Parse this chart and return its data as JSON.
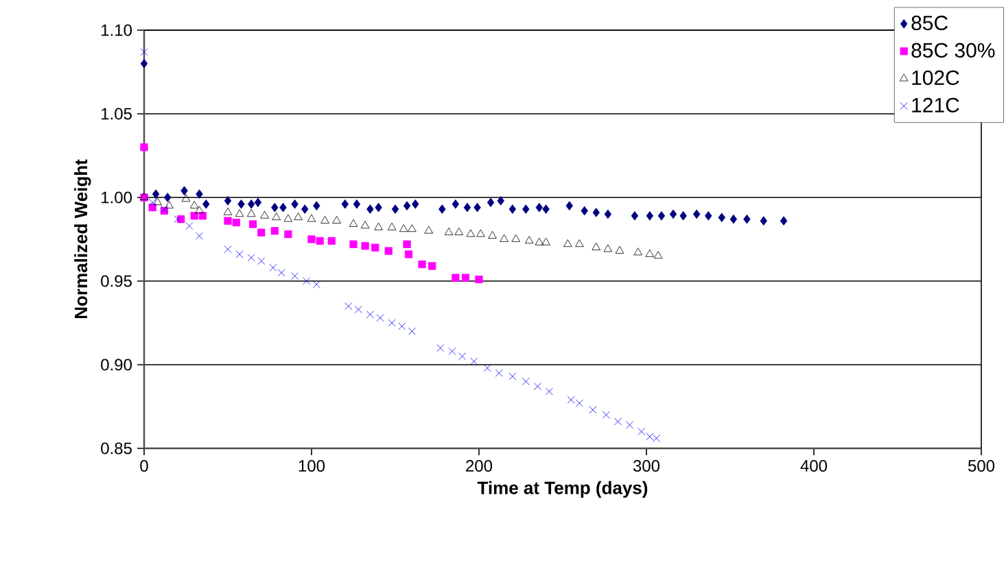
{
  "chart_data": {
    "type": "scatter",
    "xlabel": "Time at Temp (days)",
    "ylabel": "Normalized Weight",
    "xlim": [
      0,
      500
    ],
    "xticks": [
      0,
      100,
      200,
      300,
      400,
      500
    ],
    "ylim": [
      0.85,
      1.1
    ],
    "yticks": [
      {
        "value": 0.85,
        "label": "0.85"
      },
      {
        "value": 0.9,
        "label": "0.90"
      },
      {
        "value": 0.95,
        "label": "0.95"
      },
      {
        "value": 1.0,
        "label": "1.00"
      },
      {
        "value": 1.05,
        "label": "1.05"
      },
      {
        "value": 1.1,
        "label": "1.10"
      }
    ],
    "grid": "y",
    "legend": "top right",
    "series": [
      {
        "name": "85C",
        "color": "#000080",
        "marker": "diamond",
        "x": [
          0,
          7,
          14,
          24,
          33,
          37,
          50,
          58,
          64,
          68,
          78,
          83,
          90,
          96,
          103,
          120,
          127,
          135,
          140,
          150,
          157,
          162,
          178,
          186,
          193,
          199,
          207,
          213,
          220,
          228,
          236,
          240,
          254,
          263,
          270,
          277,
          293,
          302,
          309,
          316,
          322,
          330,
          337,
          345,
          352,
          360,
          370,
          382
        ],
        "values": [
          1.08,
          1.002,
          1.0,
          1.004,
          1.002,
          0.996,
          0.998,
          0.996,
          0.996,
          0.997,
          0.994,
          0.994,
          0.996,
          0.993,
          0.995,
          0.996,
          0.996,
          0.993,
          0.994,
          0.993,
          0.995,
          0.996,
          0.993,
          0.996,
          0.994,
          0.994,
          0.997,
          0.998,
          0.993,
          0.993,
          0.994,
          0.993,
          0.995,
          0.992,
          0.991,
          0.99,
          0.989,
          0.989,
          0.989,
          0.99,
          0.989,
          0.99,
          0.989,
          0.988,
          0.987,
          0.987,
          0.986,
          0.986
        ]
      },
      {
        "name": "85C 30%",
        "color": "#ff00ff",
        "marker": "square",
        "x": [
          0,
          0,
          5,
          12,
          22,
          30,
          35,
          50,
          55,
          65,
          70,
          78,
          86,
          100,
          105,
          112,
          125,
          132,
          138,
          146,
          157,
          158,
          166,
          172,
          186,
          192,
          200
        ],
        "values": [
          1.03,
          1.0,
          0.994,
          0.992,
          0.987,
          0.989,
          0.989,
          0.986,
          0.985,
          0.984,
          0.979,
          0.98,
          0.978,
          0.975,
          0.974,
          0.974,
          0.972,
          0.971,
          0.97,
          0.968,
          0.972,
          0.966,
          0.96,
          0.959,
          0.952,
          0.952,
          0.951
        ]
      },
      {
        "name": "102C",
        "color": "#000000",
        "marker": "triangle",
        "x": [
          0,
          8,
          15,
          25,
          30,
          33,
          50,
          57,
          64,
          72,
          79,
          86,
          92,
          100,
          108,
          115,
          125,
          132,
          140,
          148,
          155,
          160,
          170,
          182,
          188,
          195,
          201,
          208,
          215,
          222,
          230,
          236,
          240,
          253,
          260,
          270,
          277,
          284,
          295,
          302,
          307
        ],
        "values": [
          1.0,
          0.997,
          0.995,
          0.999,
          0.995,
          0.992,
          0.991,
          0.99,
          0.99,
          0.989,
          0.988,
          0.987,
          0.988,
          0.987,
          0.986,
          0.986,
          0.984,
          0.983,
          0.982,
          0.982,
          0.981,
          0.981,
          0.98,
          0.979,
          0.979,
          0.978,
          0.978,
          0.977,
          0.975,
          0.975,
          0.974,
          0.973,
          0.973,
          0.972,
          0.972,
          0.97,
          0.969,
          0.968,
          0.967,
          0.966,
          0.965
        ]
      },
      {
        "name": "121C",
        "color": "#0000ff",
        "marker": "cross",
        "x": [
          0,
          5,
          12,
          20,
          27,
          33,
          50,
          57,
          64,
          70,
          77,
          82,
          90,
          97,
          103,
          122,
          128,
          135,
          141,
          148,
          154,
          160,
          177,
          184,
          190,
          197,
          205,
          212,
          220,
          228,
          235,
          242,
          255,
          260,
          268,
          276,
          283,
          290,
          297,
          302,
          306
        ],
        "values": [
          1.087,
          0.997,
          0.993,
          0.987,
          0.983,
          0.977,
          0.969,
          0.966,
          0.964,
          0.962,
          0.958,
          0.955,
          0.953,
          0.95,
          0.948,
          0.935,
          0.933,
          0.93,
          0.928,
          0.925,
          0.923,
          0.92,
          0.91,
          0.908,
          0.905,
          0.902,
          0.898,
          0.895,
          0.893,
          0.89,
          0.887,
          0.884,
          0.879,
          0.877,
          0.873,
          0.87,
          0.866,
          0.864,
          0.86,
          0.857,
          0.856
        ]
      }
    ]
  }
}
